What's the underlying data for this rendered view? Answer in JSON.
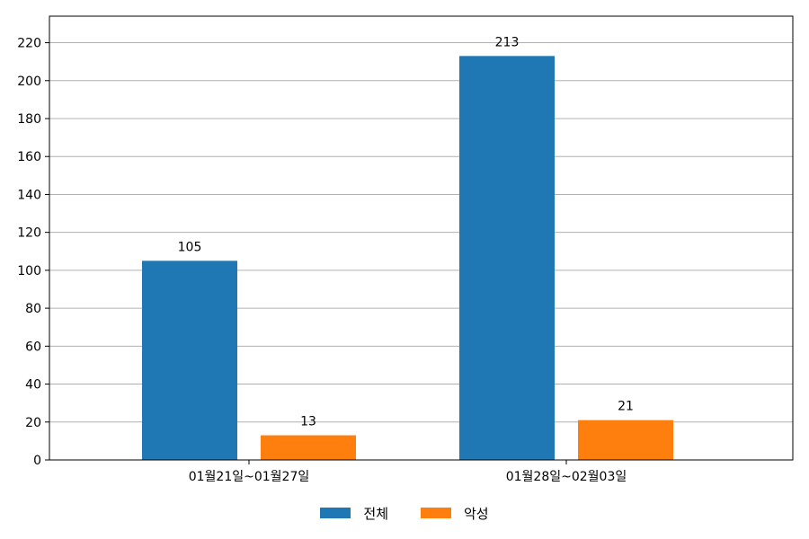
{
  "chart_data": {
    "type": "bar",
    "title": "",
    "xlabel": "",
    "ylabel": "",
    "categories": [
      "01월21일~01월27일",
      "01월28일~02월03일"
    ],
    "series": [
      {
        "name": "전체",
        "values": [
          105,
          213
        ],
        "color": "#1f77b4"
      },
      {
        "name": "악성",
        "values": [
          13,
          21
        ],
        "color": "#ff7f0e"
      }
    ],
    "ylim": [
      0,
      234
    ],
    "yticks": [
      0,
      20,
      40,
      60,
      80,
      100,
      120,
      140,
      160,
      180,
      200,
      220
    ],
    "grid": true,
    "legend_position": "bottom-center"
  }
}
